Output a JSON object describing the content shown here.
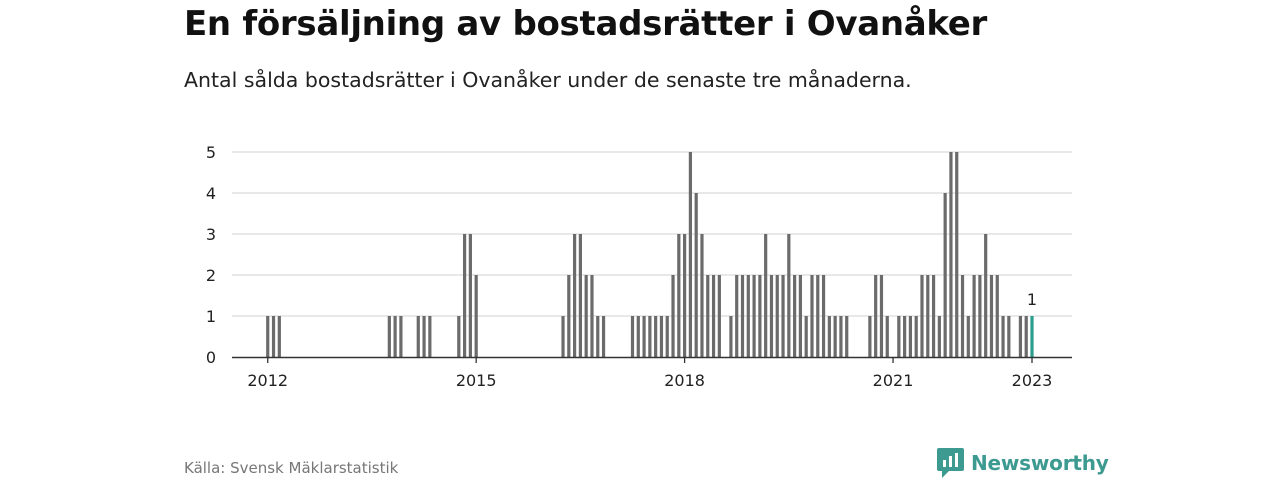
{
  "title": "En försäljning av bostadsrätter i Ovanåker",
  "subtitle": "Antal sålda bostadsrätter i Ovanåker under de senaste tre månaderna.",
  "source": "Källa: Svensk Mäklarstatistik",
  "brand": "Newsworthy",
  "colors": {
    "bar": "#6b6b6b",
    "highlight": "#2a9d8f",
    "grid": "#d9d9d9",
    "axis": "#333333",
    "brand": "#3d9a91"
  },
  "chart_data": {
    "type": "bar",
    "ylim": [
      0,
      5
    ],
    "yticks": [
      0,
      1,
      2,
      3,
      4,
      5
    ],
    "xticks": [
      "2012",
      "2015",
      "2018",
      "2021",
      "2023"
    ],
    "grid": true,
    "annotation": "1",
    "bars": [
      {
        "date": "2012-01",
        "value": 1
      },
      {
        "date": "2012-02",
        "value": 1
      },
      {
        "date": "2012-03",
        "value": 1
      },
      {
        "date": "2013-10",
        "value": 1
      },
      {
        "date": "2013-11",
        "value": 1
      },
      {
        "date": "2013-12",
        "value": 1
      },
      {
        "date": "2014-03",
        "value": 1
      },
      {
        "date": "2014-04",
        "value": 1
      },
      {
        "date": "2014-05",
        "value": 1
      },
      {
        "date": "2014-10",
        "value": 1
      },
      {
        "date": "2014-11",
        "value": 3
      },
      {
        "date": "2014-12",
        "value": 3
      },
      {
        "date": "2015-01",
        "value": 2
      },
      {
        "date": "2016-04",
        "value": 1
      },
      {
        "date": "2016-05",
        "value": 2
      },
      {
        "date": "2016-06",
        "value": 3
      },
      {
        "date": "2016-07",
        "value": 3
      },
      {
        "date": "2016-08",
        "value": 2
      },
      {
        "date": "2016-09",
        "value": 2
      },
      {
        "date": "2016-10",
        "value": 1
      },
      {
        "date": "2016-11",
        "value": 1
      },
      {
        "date": "2017-04",
        "value": 1
      },
      {
        "date": "2017-05",
        "value": 1
      },
      {
        "date": "2017-06",
        "value": 1
      },
      {
        "date": "2017-07",
        "value": 1
      },
      {
        "date": "2017-08",
        "value": 1
      },
      {
        "date": "2017-09",
        "value": 1
      },
      {
        "date": "2017-10",
        "value": 1
      },
      {
        "date": "2017-11",
        "value": 2
      },
      {
        "date": "2017-12",
        "value": 3
      },
      {
        "date": "2018-01",
        "value": 3
      },
      {
        "date": "2018-02",
        "value": 5
      },
      {
        "date": "2018-03",
        "value": 4
      },
      {
        "date": "2018-04",
        "value": 3
      },
      {
        "date": "2018-05",
        "value": 2
      },
      {
        "date": "2018-06",
        "value": 2
      },
      {
        "date": "2018-07",
        "value": 2
      },
      {
        "date": "2018-09",
        "value": 1
      },
      {
        "date": "2018-10",
        "value": 2
      },
      {
        "date": "2018-11",
        "value": 2
      },
      {
        "date": "2018-12",
        "value": 2
      },
      {
        "date": "2019-01",
        "value": 2
      },
      {
        "date": "2019-02",
        "value": 2
      },
      {
        "date": "2019-03",
        "value": 3
      },
      {
        "date": "2019-04",
        "value": 2
      },
      {
        "date": "2019-05",
        "value": 2
      },
      {
        "date": "2019-06",
        "value": 2
      },
      {
        "date": "2019-07",
        "value": 3
      },
      {
        "date": "2019-08",
        "value": 2
      },
      {
        "date": "2019-09",
        "value": 2
      },
      {
        "date": "2019-10",
        "value": 1
      },
      {
        "date": "2019-11",
        "value": 2
      },
      {
        "date": "2019-12",
        "value": 2
      },
      {
        "date": "2020-01",
        "value": 2
      },
      {
        "date": "2020-02",
        "value": 1
      },
      {
        "date": "2020-03",
        "value": 1
      },
      {
        "date": "2020-04",
        "value": 1
      },
      {
        "date": "2020-05",
        "value": 1
      },
      {
        "date": "2020-09",
        "value": 1
      },
      {
        "date": "2020-10",
        "value": 2
      },
      {
        "date": "2020-11",
        "value": 2
      },
      {
        "date": "2020-12",
        "value": 1
      },
      {
        "date": "2021-02",
        "value": 1
      },
      {
        "date": "2021-03",
        "value": 1
      },
      {
        "date": "2021-04",
        "value": 1
      },
      {
        "date": "2021-05",
        "value": 1
      },
      {
        "date": "2021-06",
        "value": 2
      },
      {
        "date": "2021-07",
        "value": 2
      },
      {
        "date": "2021-08",
        "value": 2
      },
      {
        "date": "2021-09",
        "value": 1
      },
      {
        "date": "2021-10",
        "value": 4
      },
      {
        "date": "2021-11",
        "value": 5
      },
      {
        "date": "2021-12",
        "value": 5
      },
      {
        "date": "2022-01",
        "value": 2
      },
      {
        "date": "2022-02",
        "value": 1
      },
      {
        "date": "2022-03",
        "value": 2
      },
      {
        "date": "2022-04",
        "value": 2
      },
      {
        "date": "2022-05",
        "value": 3
      },
      {
        "date": "2022-06",
        "value": 2
      },
      {
        "date": "2022-07",
        "value": 2
      },
      {
        "date": "2022-08",
        "value": 1
      },
      {
        "date": "2022-09",
        "value": 1
      },
      {
        "date": "2022-11",
        "value": 1
      },
      {
        "date": "2022-12",
        "value": 1
      },
      {
        "date": "2023-01",
        "value": 1,
        "highlight": true
      }
    ]
  }
}
